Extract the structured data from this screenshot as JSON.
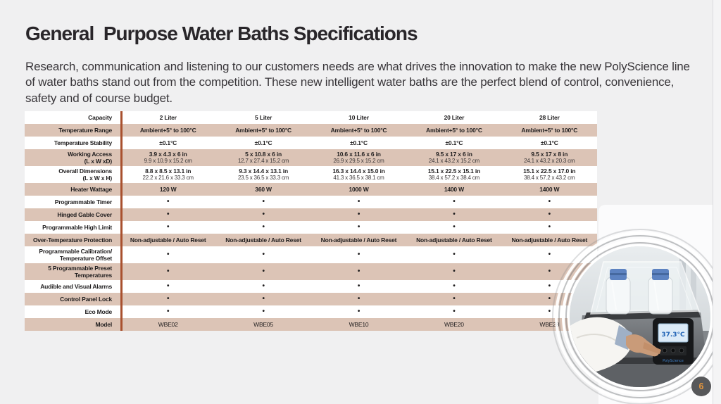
{
  "header": {
    "title": "General  Purpose Water Baths Specifications",
    "intro": "Research, communication and listening to our customers needs are what drives the innovation to make the new PolyScience line of water baths stand out from the competition. These new intelligent water baths are the perfect blend of control, convenience, safety and of course budget."
  },
  "table": {
    "columns": [
      "2 Liter",
      "5 Liter",
      "10 Liter",
      "20 Liter",
      "28 Liter"
    ],
    "accent_color": "#a8502e",
    "stripe_color": "#dcc4b6",
    "rows": [
      {
        "label": "Capacity",
        "value_style": "bold",
        "values": [
          "2 Liter",
          "5 Liter",
          "10 Liter",
          "20 Liter",
          "28 Liter"
        ]
      },
      {
        "label": "Temperature Range",
        "value_style": "bold",
        "values": [
          "Ambient+5° to 100°C",
          "Ambient+5° to 100°C",
          "Ambient+5° to 100°C",
          "Ambient+5° to 100°C",
          "Ambient+5° to 100°C"
        ]
      },
      {
        "label": "Temperature Stability",
        "value_style": "bold",
        "values": [
          "±0.1°C",
          "±0.1°C",
          "±0.1°C",
          "±0.1°C",
          "±0.1°C"
        ]
      },
      {
        "label": "Working Access\n(L x W xD)",
        "value_style": "bold",
        "values": [
          [
            "3.9 x 4.3 x 6 in",
            "9.9 x 10.9 x 15.2 cm"
          ],
          [
            "5 x 10.8 x 6 in",
            "12.7 x 27.4 x 15.2 cm"
          ],
          [
            "10.6 x 11.6 x 6 in",
            "26.9 x 29.5 x 15.2 cm"
          ],
          [
            "9.5 x 17 x 6 in",
            "24.1 x 43.2 x 15.2 cm"
          ],
          [
            "9.5 x 17 x 8 in",
            "24.1 x 43.2 x 20.3 cm"
          ]
        ]
      },
      {
        "label": "Overall Dimensions\n(L x W x H)",
        "value_style": "bold",
        "values": [
          [
            "8.8 x 8.5 x 13.1 in",
            "22.2 x 21.6 x 33.3 cm"
          ],
          [
            "9.3 x 14.4 x 13.1 in",
            "23.5 x 36.5 x 33.3 cm"
          ],
          [
            "16.3 x 14.4 x 15.0 in",
            "41.3 x 36.5 x 38.1 cm"
          ],
          [
            "15.1 x 22.5 x 15.1 in",
            "38.4 x 57.2 x 38.4 cm"
          ],
          [
            "15.1 x 22.5 x 17.0 in",
            "38.4 x 57.2 x 43.2 cm"
          ]
        ]
      },
      {
        "label": "Heater Wattage",
        "value_style": "bold",
        "values": [
          "120 W",
          "360 W",
          "1000 W",
          "1400 W",
          "1400 W"
        ]
      },
      {
        "label": "Programmable Timer",
        "value_style": "bold",
        "values": [
          "•",
          "•",
          "•",
          "•",
          "•"
        ]
      },
      {
        "label": "Hinged Gable Cover",
        "value_style": "bold",
        "values": [
          "•",
          "•",
          "•",
          "•",
          "•"
        ]
      },
      {
        "label": "Programmable High Limit",
        "value_style": "bold",
        "values": [
          "•",
          "•",
          "•",
          "•",
          "•"
        ]
      },
      {
        "label": "Over-Temperature Protection",
        "value_style": "bold",
        "values": [
          "Non-adjustable / Auto Reset",
          "Non-adjustable / Auto Reset",
          "Non-adjustable / Auto Reset",
          "Non-adjustable / Auto Reset",
          "Non-adjustable / Auto Reset"
        ]
      },
      {
        "label": "Programmable Calibration/\nTemperature Offset",
        "value_style": "bold",
        "values": [
          "•",
          "•",
          "•",
          "•",
          "•"
        ]
      },
      {
        "label": "5 Programmable Preset\nTemperatures",
        "value_style": "bold",
        "values": [
          "•",
          "•",
          "•",
          "•",
          "•"
        ]
      },
      {
        "label": "Audible and Visual Alarms",
        "value_style": "bold",
        "values": [
          "•",
          "•",
          "•",
          "•",
          "•"
        ]
      },
      {
        "label": "Control Panel Lock",
        "value_style": "bold",
        "values": [
          "•",
          "•",
          "•",
          "•",
          "•"
        ]
      },
      {
        "label": "Eco Mode",
        "value_style": "bold",
        "values": [
          "•",
          "•",
          "•",
          "•",
          "•"
        ]
      },
      {
        "label": "Model",
        "value_style": "regular",
        "values": [
          "WBE02",
          "WBE05",
          "WBE10",
          "WBE20",
          "WBE28"
        ]
      }
    ]
  },
  "photo": {
    "display_reading": "37.3°C",
    "brand_label": "PolyScience"
  },
  "footer": {
    "page_number": "6",
    "badge_bg": "#57585a",
    "badge_text_color": "#e2953d"
  }
}
